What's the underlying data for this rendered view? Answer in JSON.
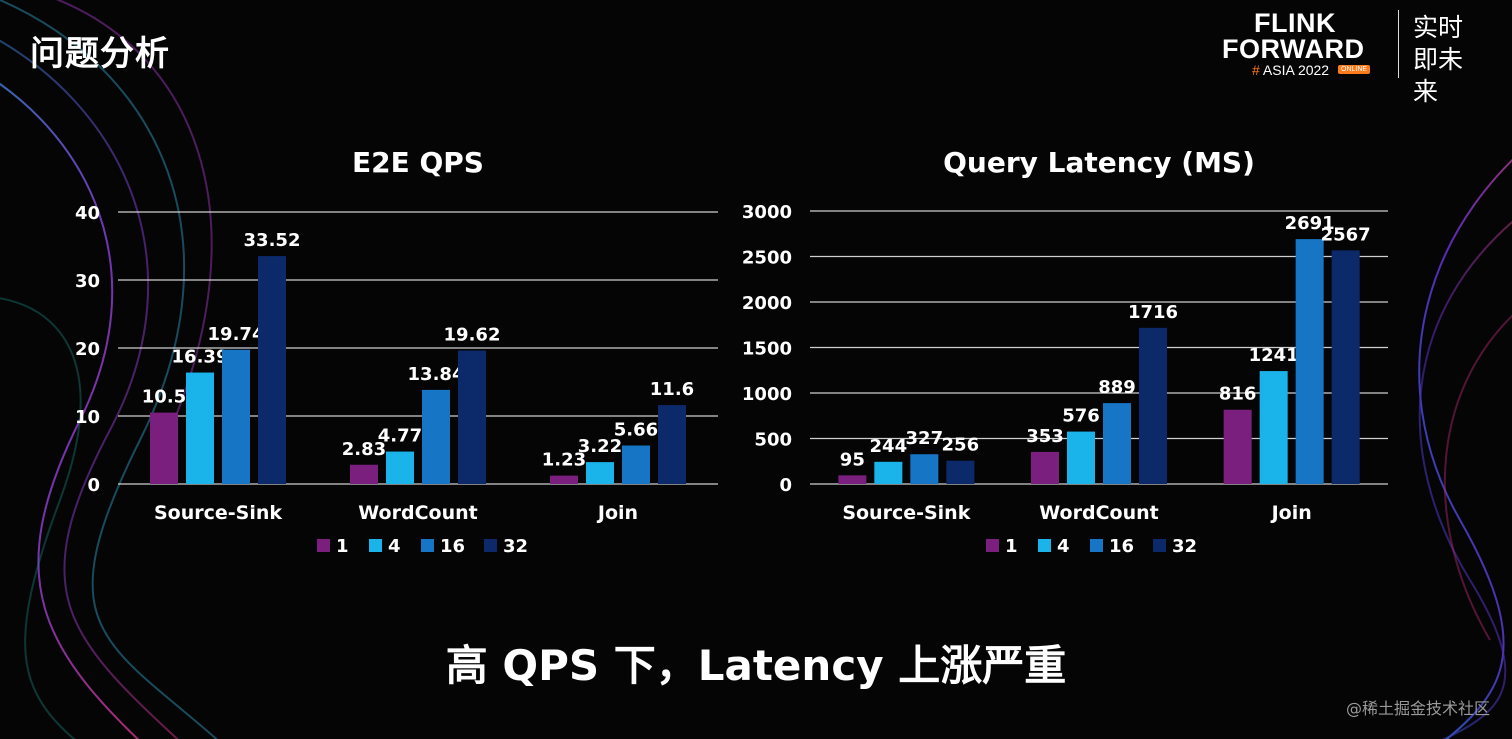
{
  "slide": {
    "title": "问题分析",
    "subtitle": "高 QPS 下，Latency 上涨严重",
    "watermark": "@稀土掘金技术社区"
  },
  "logo": {
    "line1": "FLINK",
    "line2": "FORWARD",
    "line3_hash": "#",
    "line3_text": "ASIA 2022",
    "badge": "ONLINE",
    "chinese": "实时即未来"
  },
  "colors": {
    "series_1": "#7a1f7e",
    "series_4": "#1ab4ea",
    "series_16": "#1675c4",
    "series_32": "#0c2a6a",
    "gridline": "#cfcfcf",
    "text": "#ffffff"
  },
  "chart_data": [
    {
      "type": "bar",
      "title": "E2E QPS",
      "categories": [
        "Source-Sink",
        "WordCount",
        "Join"
      ],
      "series": [
        {
          "name": "1",
          "values": [
            10.5,
            2.83,
            1.23
          ]
        },
        {
          "name": "4",
          "values": [
            16.39,
            4.77,
            3.22
          ]
        },
        {
          "name": "16",
          "values": [
            19.74,
            13.84,
            5.66
          ]
        },
        {
          "name": "32",
          "values": [
            33.52,
            19.62,
            11.6
          ]
        }
      ],
      "value_labels": [
        [
          "10.5",
          "2.83",
          "1.23"
        ],
        [
          "16.39",
          "4.77",
          "3.22"
        ],
        [
          "19.74",
          "13.84",
          "5.66"
        ],
        [
          "33.52",
          "19.62",
          "11.6"
        ]
      ],
      "yticks": [
        0,
        10,
        20,
        30,
        40
      ],
      "ylim": [
        0,
        40
      ],
      "grid": true,
      "legend": "bottom"
    },
    {
      "type": "bar",
      "title": "Query Latency (MS)",
      "categories": [
        "Source-Sink",
        "WordCount",
        "Join"
      ],
      "series": [
        {
          "name": "1",
          "values": [
            95,
            353,
            816
          ]
        },
        {
          "name": "4",
          "values": [
            244,
            576,
            1241
          ]
        },
        {
          "name": "16",
          "values": [
            327,
            889,
            2691
          ]
        },
        {
          "name": "32",
          "values": [
            256,
            1716,
            2567
          ]
        }
      ],
      "value_labels": [
        [
          "95",
          "353",
          "816"
        ],
        [
          "244",
          "576",
          "1241"
        ],
        [
          "327",
          "889",
          "2691"
        ],
        [
          "256",
          "1716",
          "2567"
        ]
      ],
      "yticks": [
        0,
        500,
        1000,
        1500,
        2000,
        2500,
        3000
      ],
      "ylim": [
        0,
        3000
      ],
      "grid": true,
      "legend": "bottom"
    }
  ]
}
